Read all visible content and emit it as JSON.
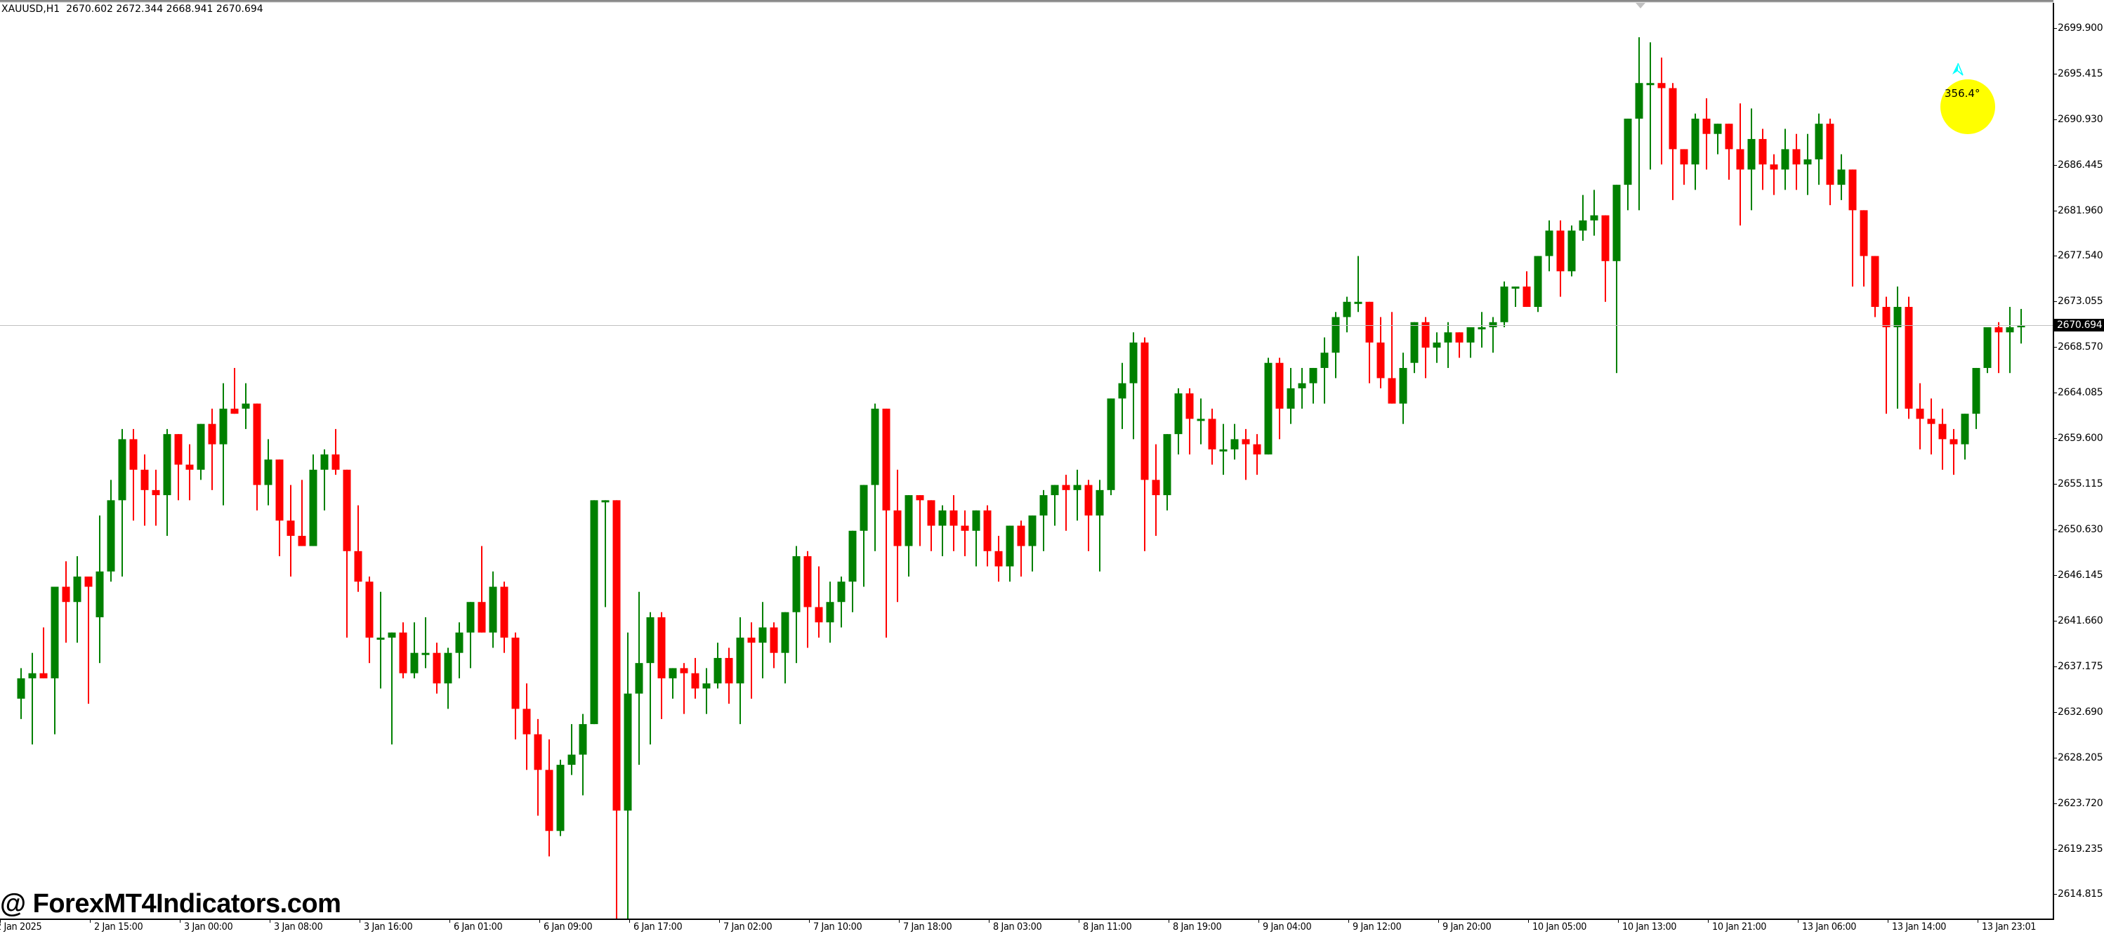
{
  "header": {
    "symbol": "XAUUSD,H1",
    "ohlc_text": "2670.602 2672.344 2668.941 2670.694"
  },
  "watermark": "@ ForexMT4Indicators.com",
  "compass": {
    "angle_label": "356.4°",
    "circle_color": "#FFFF00",
    "arrow_color": "#00FFFF"
  },
  "colors": {
    "bull": "#008000",
    "bear": "#FF0000",
    "grid_line": "#C0C0C0",
    "axis": "#000000"
  },
  "chart_data": {
    "type": "candlestick",
    "title": "XAUUSD,H1",
    "symbol": "XAUUSD",
    "timeframe": "H1",
    "last_bar": {
      "open": 2670.602,
      "high": 2672.344,
      "low": 2668.941,
      "close": 2670.694
    },
    "current_price": 2670.694,
    "y_axis": {
      "ticks": [
        "2699.900",
        "2695.415",
        "2690.930",
        "2686.445",
        "2681.960",
        "2677.540",
        "2673.055",
        "2668.570",
        "2664.085",
        "2659.600",
        "2655.115",
        "2650.630",
        "2646.145",
        "2641.660",
        "2637.175",
        "2632.690",
        "2628.205",
        "2623.720",
        "2619.235",
        "2614.815"
      ],
      "range": [
        2612.4,
        2702.6
      ],
      "position": "right"
    },
    "x_axis": {
      "ticks": [
        "2 Jan 2025",
        "2 Jan 15:00",
        "3 Jan 00:00",
        "3 Jan 08:00",
        "3 Jan 16:00",
        "6 Jan 01:00",
        "6 Jan 09:00",
        "6 Jan 17:00",
        "7 Jan 02:00",
        "7 Jan 10:00",
        "7 Jan 18:00",
        "8 Jan 03:00",
        "8 Jan 11:00",
        "8 Jan 19:00",
        "9 Jan 04:00",
        "9 Jan 12:00",
        "9 Jan 20:00",
        "10 Jan 05:00",
        "10 Jan 13:00",
        "10 Jan 21:00",
        "13 Jan 06:00",
        "13 Jan 14:00",
        "13 Jan 23:01"
      ]
    },
    "grid": false,
    "legend": "none",
    "candles_ohlc": [
      [
        2634.0,
        2637.0,
        2632.0,
        2636.0
      ],
      [
        2636.0,
        2638.5,
        2629.5,
        2636.5
      ],
      [
        2636.5,
        2641.0,
        2636.0,
        2636.0
      ],
      [
        2636.0,
        2645.0,
        2630.5,
        2645.0
      ],
      [
        2645.0,
        2647.5,
        2639.5,
        2643.5
      ],
      [
        2643.5,
        2648.0,
        2639.5,
        2646.0
      ],
      [
        2646.0,
        2646.0,
        2633.5,
        2645.0
      ],
      [
        2642.0,
        2652.0,
        2637.5,
        2646.5
      ],
      [
        2646.5,
        2655.5,
        2645.5,
        2653.5
      ],
      [
        2653.5,
        2660.5,
        2646.0,
        2659.5
      ],
      [
        2659.5,
        2660.5,
        2651.5,
        2656.5
      ],
      [
        2656.5,
        2658.0,
        2651.0,
        2654.5
      ],
      [
        2654.5,
        2656.5,
        2651.0,
        2654.0
      ],
      [
        2654.0,
        2660.5,
        2650.0,
        2660.0
      ],
      [
        2660.0,
        2659.5,
        2653.5,
        2657.0
      ],
      [
        2657.0,
        2659.0,
        2653.5,
        2656.5
      ],
      [
        2656.5,
        2661.0,
        2655.5,
        2661.0
      ],
      [
        2661.0,
        2662.5,
        2654.5,
        2659.0
      ],
      [
        2659.0,
        2665.0,
        2653.0,
        2662.5
      ],
      [
        2662.5,
        2666.5,
        2662.0,
        2662.0
      ],
      [
        2662.5,
        2665.0,
        2660.5,
        2663.0
      ],
      [
        2663.0,
        2663.0,
        2652.5,
        2655.0
      ],
      [
        2655.0,
        2659.5,
        2653.0,
        2657.5
      ],
      [
        2657.5,
        2657.5,
        2648.0,
        2651.5
      ],
      [
        2651.5,
        2655.0,
        2646.0,
        2650.0
      ],
      [
        2650.0,
        2655.5,
        2650.0,
        2649.0
      ],
      [
        2649.0,
        2658.0,
        2649.0,
        2656.5
      ],
      [
        2656.5,
        2658.5,
        2652.5,
        2658.0
      ],
      [
        2658.0,
        2660.5,
        2656.0,
        2656.5
      ],
      [
        2656.5,
        2656.5,
        2640.0,
        2648.5
      ],
      [
        2648.5,
        2653.0,
        2644.5,
        2645.5
      ],
      [
        2645.5,
        2646.0,
        2637.5,
        2640.0
      ],
      [
        2640.0,
        2644.5,
        2635.0,
        2640.0
      ],
      [
        2640.0,
        2638.0,
        2629.5,
        2640.5
      ],
      [
        2640.5,
        2641.5,
        2636.0,
        2636.5
      ],
      [
        2636.5,
        2641.5,
        2636.0,
        2638.5
      ],
      [
        2638.5,
        2642.0,
        2637.0,
        2638.5
      ],
      [
        2638.5,
        2639.5,
        2634.5,
        2635.5
      ],
      [
        2635.5,
        2639.0,
        2633.0,
        2638.5
      ],
      [
        2638.5,
        2641.5,
        2636.0,
        2640.5
      ],
      [
        2640.5,
        2643.5,
        2637.0,
        2643.5
      ],
      [
        2643.5,
        2649.0,
        2641.0,
        2640.5
      ],
      [
        2640.5,
        2646.5,
        2639.0,
        2645.0
      ],
      [
        2645.0,
        2645.5,
        2638.5,
        2640.0
      ],
      [
        2640.0,
        2640.5,
        2630.0,
        2633.0
      ],
      [
        2633.0,
        2635.5,
        2627.0,
        2630.5
      ],
      [
        2630.5,
        2632.0,
        2622.5,
        2627.0
      ],
      [
        2627.0,
        2630.0,
        2618.5,
        2621.0
      ],
      [
        2621.0,
        2628.0,
        2620.5,
        2627.5
      ],
      [
        2627.5,
        2631.5,
        2626.5,
        2628.5
      ],
      [
        2628.5,
        2632.5,
        2624.5,
        2631.5
      ],
      [
        2631.5,
        2651.0,
        2632.0,
        2653.5
      ],
      [
        2653.5,
        2653.0,
        2643.0,
        2653.5
      ],
      [
        2653.5,
        2649.0,
        2607.5,
        2623.0
      ],
      [
        2623.0,
        2640.5,
        2611.0,
        2634.5
      ],
      [
        2634.5,
        2644.5,
        2627.5,
        2637.5
      ],
      [
        2637.5,
        2642.5,
        2629.5,
        2642.0
      ],
      [
        2642.0,
        2642.5,
        2632.0,
        2636.0
      ],
      [
        2636.0,
        2637.0,
        2634.0,
        2637.0
      ],
      [
        2637.0,
        2637.5,
        2632.5,
        2636.5
      ],
      [
        2636.5,
        2638.0,
        2634.0,
        2635.0
      ],
      [
        2635.0,
        2637.0,
        2632.5,
        2635.5
      ],
      [
        2635.5,
        2639.5,
        2635.0,
        2638.0
      ],
      [
        2638.0,
        2639.0,
        2633.5,
        2635.5
      ],
      [
        2635.5,
        2642.0,
        2631.5,
        2640.0
      ],
      [
        2640.0,
        2641.5,
        2634.0,
        2639.5
      ],
      [
        2639.5,
        2643.5,
        2636.0,
        2641.0
      ],
      [
        2641.0,
        2641.5,
        2637.0,
        2638.5
      ],
      [
        2638.5,
        2641.5,
        2635.5,
        2642.5
      ],
      [
        2642.5,
        2649.0,
        2637.5,
        2648.0
      ],
      [
        2648.0,
        2648.5,
        2639.0,
        2643.0
      ],
      [
        2643.0,
        2647.0,
        2640.0,
        2641.5
      ],
      [
        2641.5,
        2645.5,
        2639.5,
        2643.5
      ],
      [
        2643.5,
        2646.0,
        2641.0,
        2645.5
      ],
      [
        2645.5,
        2649.0,
        2642.5,
        2650.5
      ],
      [
        2650.5,
        2654.0,
        2645.0,
        2655.0
      ],
      [
        2655.0,
        2663.0,
        2648.5,
        2662.5
      ],
      [
        2662.5,
        2662.5,
        2640.0,
        2652.5
      ],
      [
        2652.5,
        2656.5,
        2643.5,
        2649.0
      ],
      [
        2649.0,
        2654.0,
        2646.0,
        2654.0
      ],
      [
        2654.0,
        2654.0,
        2649.0,
        2653.5
      ],
      [
        2653.5,
        2653.0,
        2648.5,
        2651.0
      ],
      [
        2651.0,
        2653.0,
        2648.0,
        2652.5
      ],
      [
        2652.5,
        2654.0,
        2648.5,
        2651.0
      ],
      [
        2651.0,
        2652.5,
        2648.0,
        2650.5
      ],
      [
        2650.5,
        2651.5,
        2647.0,
        2652.5
      ],
      [
        2652.5,
        2653.0,
        2647.0,
        2648.5
      ],
      [
        2648.5,
        2650.0,
        2645.5,
        2647.0
      ],
      [
        2647.0,
        2648.5,
        2645.5,
        2651.0
      ],
      [
        2651.0,
        2651.5,
        2646.0,
        2649.0
      ],
      [
        2649.0,
        2651.0,
        2646.5,
        2652.0
      ],
      [
        2652.0,
        2654.5,
        2648.5,
        2654.0
      ],
      [
        2654.0,
        2654.5,
        2651.0,
        2655.0
      ],
      [
        2655.0,
        2656.0,
        2650.5,
        2654.5
      ],
      [
        2654.5,
        2656.5,
        2651.5,
        2655.0
      ],
      [
        2655.0,
        2655.5,
        2648.5,
        2652.0
      ],
      [
        2652.0,
        2655.5,
        2646.5,
        2654.5
      ],
      [
        2654.5,
        2660.5,
        2654.0,
        2663.5
      ],
      [
        2663.5,
        2667.0,
        2660.5,
        2665.0
      ],
      [
        2665.0,
        2670.0,
        2659.5,
        2669.0
      ],
      [
        2669.0,
        2669.5,
        2648.5,
        2655.5
      ],
      [
        2655.5,
        2659.0,
        2650.0,
        2654.0
      ],
      [
        2654.0,
        2659.5,
        2652.5,
        2660.0
      ],
      [
        2660.0,
        2664.5,
        2658.0,
        2664.0
      ],
      [
        2664.0,
        2664.5,
        2658.0,
        2661.5
      ],
      [
        2661.5,
        2663.5,
        2659.0,
        2661.5
      ],
      [
        2661.5,
        2662.5,
        2657.0,
        2658.5
      ],
      [
        2658.5,
        2661.0,
        2656.0,
        2658.5
      ],
      [
        2658.5,
        2661.0,
        2657.5,
        2659.5
      ],
      [
        2659.5,
        2660.5,
        2655.5,
        2659.0
      ],
      [
        2659.0,
        2660.0,
        2656.0,
        2658.0
      ],
      [
        2658.0,
        2667.5,
        2658.0,
        2667.0
      ],
      [
        2667.0,
        2667.5,
        2659.5,
        2662.5
      ],
      [
        2662.5,
        2666.5,
        2661.0,
        2664.5
      ],
      [
        2664.5,
        2666.5,
        2662.5,
        2665.0
      ],
      [
        2665.0,
        2666.5,
        2663.0,
        2666.5
      ],
      [
        2666.5,
        2669.5,
        2663.0,
        2668.0
      ],
      [
        2668.0,
        2672.0,
        2665.5,
        2671.5
      ],
      [
        2671.5,
        2673.5,
        2670.0,
        2673.0
      ],
      [
        2673.0,
        2677.5,
        2672.0,
        2673.0
      ],
      [
        2673.0,
        2672.0,
        2665.0,
        2669.0
      ],
      [
        2669.0,
        2671.5,
        2664.5,
        2665.5
      ],
      [
        2665.5,
        2672.0,
        2663.0,
        2663.0
      ],
      [
        2663.0,
        2668.0,
        2661.0,
        2666.5
      ],
      [
        2667.0,
        2671.0,
        2666.0,
        2671.0
      ],
      [
        2671.0,
        2671.5,
        2665.5,
        2668.5
      ],
      [
        2668.5,
        2670.0,
        2667.0,
        2669.0
      ],
      [
        2669.0,
        2671.0,
        2666.5,
        2670.0
      ],
      [
        2670.0,
        2670.0,
        2667.5,
        2669.0
      ],
      [
        2669.0,
        2670.5,
        2667.5,
        2670.5
      ],
      [
        2670.5,
        2672.0,
        2668.5,
        2670.5
      ],
      [
        2670.5,
        2671.5,
        2668.0,
        2671.0
      ],
      [
        2671.0,
        2675.0,
        2670.5,
        2674.5
      ],
      [
        2674.5,
        2674.0,
        2672.5,
        2674.5
      ],
      [
        2674.5,
        2676.0,
        2673.0,
        2672.5
      ],
      [
        2672.5,
        2676.5,
        2672.0,
        2677.5
      ],
      [
        2677.5,
        2681.0,
        2676.0,
        2680.0
      ],
      [
        2680.0,
        2681.0,
        2673.5,
        2676.0
      ],
      [
        2676.0,
        2680.5,
        2675.5,
        2680.0
      ],
      [
        2680.0,
        2683.5,
        2679.0,
        2681.0
      ],
      [
        2681.0,
        2684.0,
        2679.5,
        2681.5
      ],
      [
        2681.5,
        2681.5,
        2673.0,
        2677.0
      ],
      [
        2677.0,
        2680.0,
        2666.0,
        2684.5
      ],
      [
        2684.5,
        2687.5,
        2682.0,
        2691.0
      ],
      [
        2691.0,
        2699.0,
        2682.0,
        2694.5
      ],
      [
        2694.5,
        2698.5,
        2686.0,
        2694.5
      ],
      [
        2694.5,
        2697.0,
        2686.5,
        2694.0
      ],
      [
        2694.0,
        2694.5,
        2683.0,
        2688.0
      ],
      [
        2688.0,
        2686.0,
        2684.5,
        2686.5
      ],
      [
        2686.5,
        2691.5,
        2684.0,
        2691.0
      ],
      [
        2691.0,
        2693.0,
        2686.0,
        2689.5
      ],
      [
        2689.5,
        2690.5,
        2687.5,
        2690.5
      ],
      [
        2690.5,
        2690.5,
        2685.0,
        2688.0
      ],
      [
        2688.0,
        2692.5,
        2680.5,
        2686.0
      ],
      [
        2686.0,
        2692.0,
        2682.0,
        2689.0
      ],
      [
        2689.0,
        2690.0,
        2684.0,
        2686.5
      ],
      [
        2686.5,
        2687.5,
        2683.5,
        2686.0
      ],
      [
        2686.0,
        2690.0,
        2684.0,
        2688.0
      ],
      [
        2688.0,
        2689.5,
        2684.0,
        2686.5
      ],
      [
        2686.5,
        2689.5,
        2683.5,
        2687.0
      ],
      [
        2687.0,
        2691.5,
        2684.5,
        2690.5
      ],
      [
        2690.5,
        2691.0,
        2682.5,
        2684.5
      ],
      [
        2684.5,
        2687.5,
        2683.0,
        2686.0
      ],
      [
        2686.0,
        2684.0,
        2674.5,
        2682.0
      ],
      [
        2682.0,
        2681.5,
        2674.5,
        2677.5
      ],
      [
        2677.5,
        2677.0,
        2671.5,
        2672.5
      ],
      [
        2672.5,
        2673.5,
        2662.0,
        2670.5
      ],
      [
        2670.5,
        2674.5,
        2662.5,
        2672.5
      ],
      [
        2672.5,
        2673.5,
        2661.5,
        2662.5
      ],
      [
        2662.5,
        2665.0,
        2658.5,
        2661.5
      ],
      [
        2661.5,
        2663.5,
        2658.0,
        2661.0
      ],
      [
        2661.0,
        2662.5,
        2656.5,
        2659.5
      ],
      [
        2659.5,
        2660.5,
        2656.0,
        2659.0
      ],
      [
        2659.0,
        2660.0,
        2657.5,
        2662.0
      ],
      [
        2662.0,
        2663.5,
        2660.5,
        2666.5
      ],
      [
        2666.5,
        2670.0,
        2666.0,
        2670.5
      ],
      [
        2670.5,
        2671.0,
        2666.0,
        2670.0
      ],
      [
        2670.0,
        2672.5,
        2666.0,
        2670.5
      ],
      [
        2670.6,
        2672.3,
        2668.9,
        2670.7
      ]
    ]
  }
}
